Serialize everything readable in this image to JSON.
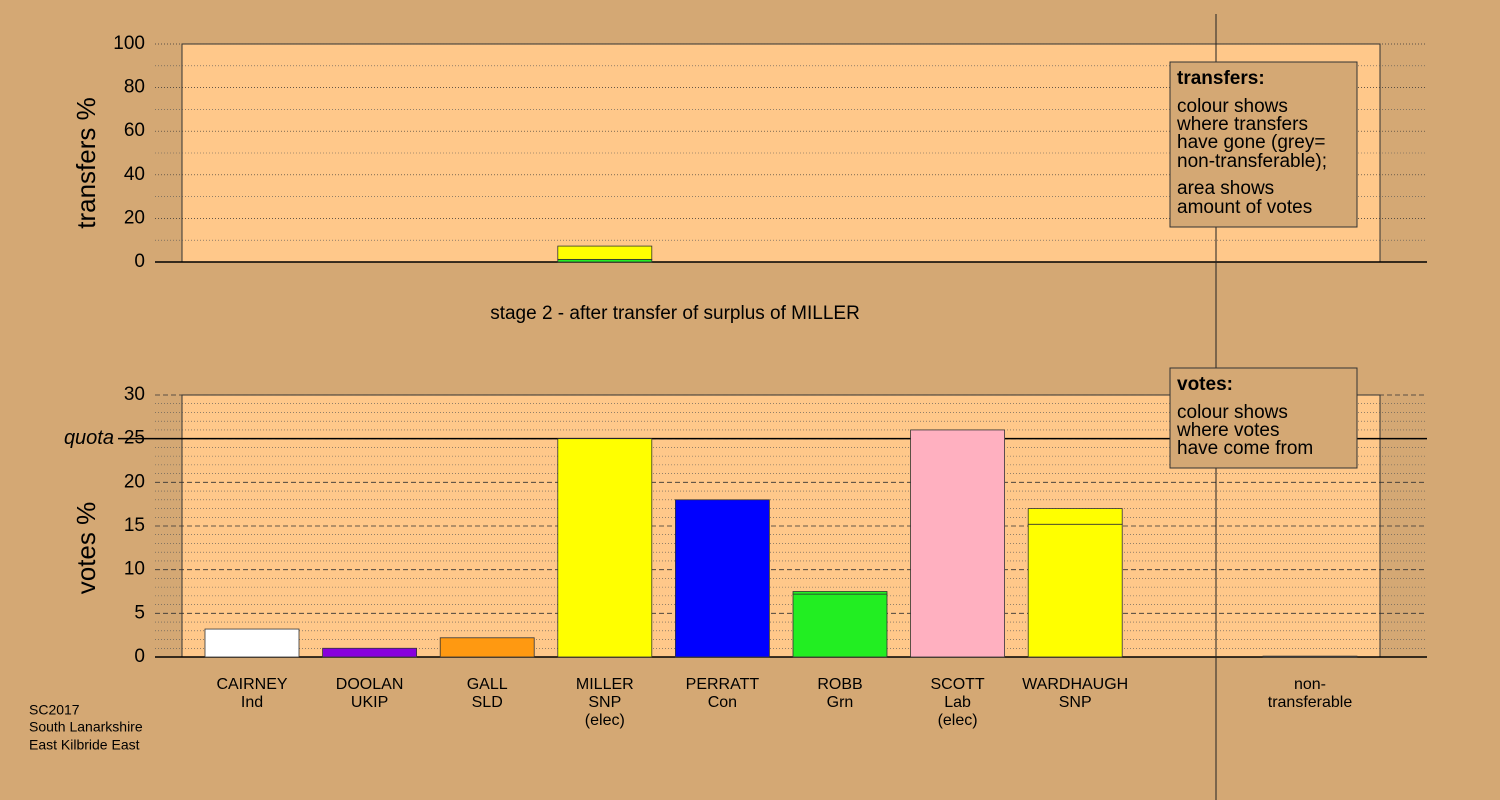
{
  "chart_data": [
    {
      "type": "bar",
      "stacked": true,
      "y_label": "transfers %",
      "ylim": [
        0,
        100
      ],
      "yticks": [
        0,
        20,
        40,
        60,
        80,
        100
      ],
      "series": [
        {
          "colors": [
            null,
            null,
            null,
            "#22ee22",
            null,
            null,
            null,
            null,
            null
          ],
          "values": [
            null,
            null,
            null,
            1.2,
            null,
            null,
            null,
            null,
            null
          ]
        },
        {
          "colors": [
            null,
            null,
            null,
            "#ffff00",
            null,
            null,
            null,
            null,
            null
          ],
          "values": [
            null,
            null,
            null,
            6.1,
            null,
            null,
            null,
            null,
            null
          ]
        }
      ],
      "legend": {
        "title": "transfers:",
        "lines": [
          "colour shows",
          "where transfers",
          "have gone (grey=",
          "non-transferable);"
        ],
        "lines2": [
          "area shows",
          "amount of votes"
        ]
      }
    },
    {
      "type": "bar",
      "stacked": true,
      "title": "stage 2 - after transfer of surplus of MILLER",
      "y_label": "votes %",
      "ylim": [
        0,
        30
      ],
      "yticks": [
        0,
        5,
        10,
        15,
        20,
        25,
        30
      ],
      "quota": {
        "value": 25,
        "label": "quota"
      },
      "categories": [
        [
          "CAIRNEY",
          "Ind"
        ],
        [
          "DOOLAN",
          "UKIP"
        ],
        [
          "GALL",
          "SLD"
        ],
        [
          "MILLER",
          "SNP",
          "(elec)"
        ],
        [
          "PERRATT",
          "Con"
        ],
        [
          "ROBB",
          "Grn"
        ],
        [
          "SCOTT",
          "Lab",
          "(elec)"
        ],
        [
          "WARDHAUGH",
          "SNP"
        ],
        [
          "non-",
          "transferable"
        ]
      ],
      "series": [
        {
          "colors": [
            "#ffffff",
            "#8800dd",
            "#ff9911",
            "#ffff00",
            "#0000ff",
            "#22ee22",
            "#ffb0c0",
            "#ffff00",
            null
          ],
          "values": [
            3.2,
            1.0,
            2.2,
            25.0,
            18.0,
            7.2,
            26.0,
            15.2,
            null
          ]
        },
        {
          "colors": [
            null,
            null,
            null,
            null,
            null,
            "#22ee22",
            null,
            "#ffff00",
            "#888888"
          ],
          "values": [
            null,
            null,
            null,
            null,
            null,
            0.3,
            null,
            1.8,
            0.1
          ]
        }
      ],
      "legend": {
        "title": "votes:",
        "lines": [
          "colour shows",
          "where votes",
          "have come from"
        ]
      }
    }
  ],
  "footer": [
    "SC2017",
    "South Lanarkshire",
    "East Kilbride East"
  ]
}
